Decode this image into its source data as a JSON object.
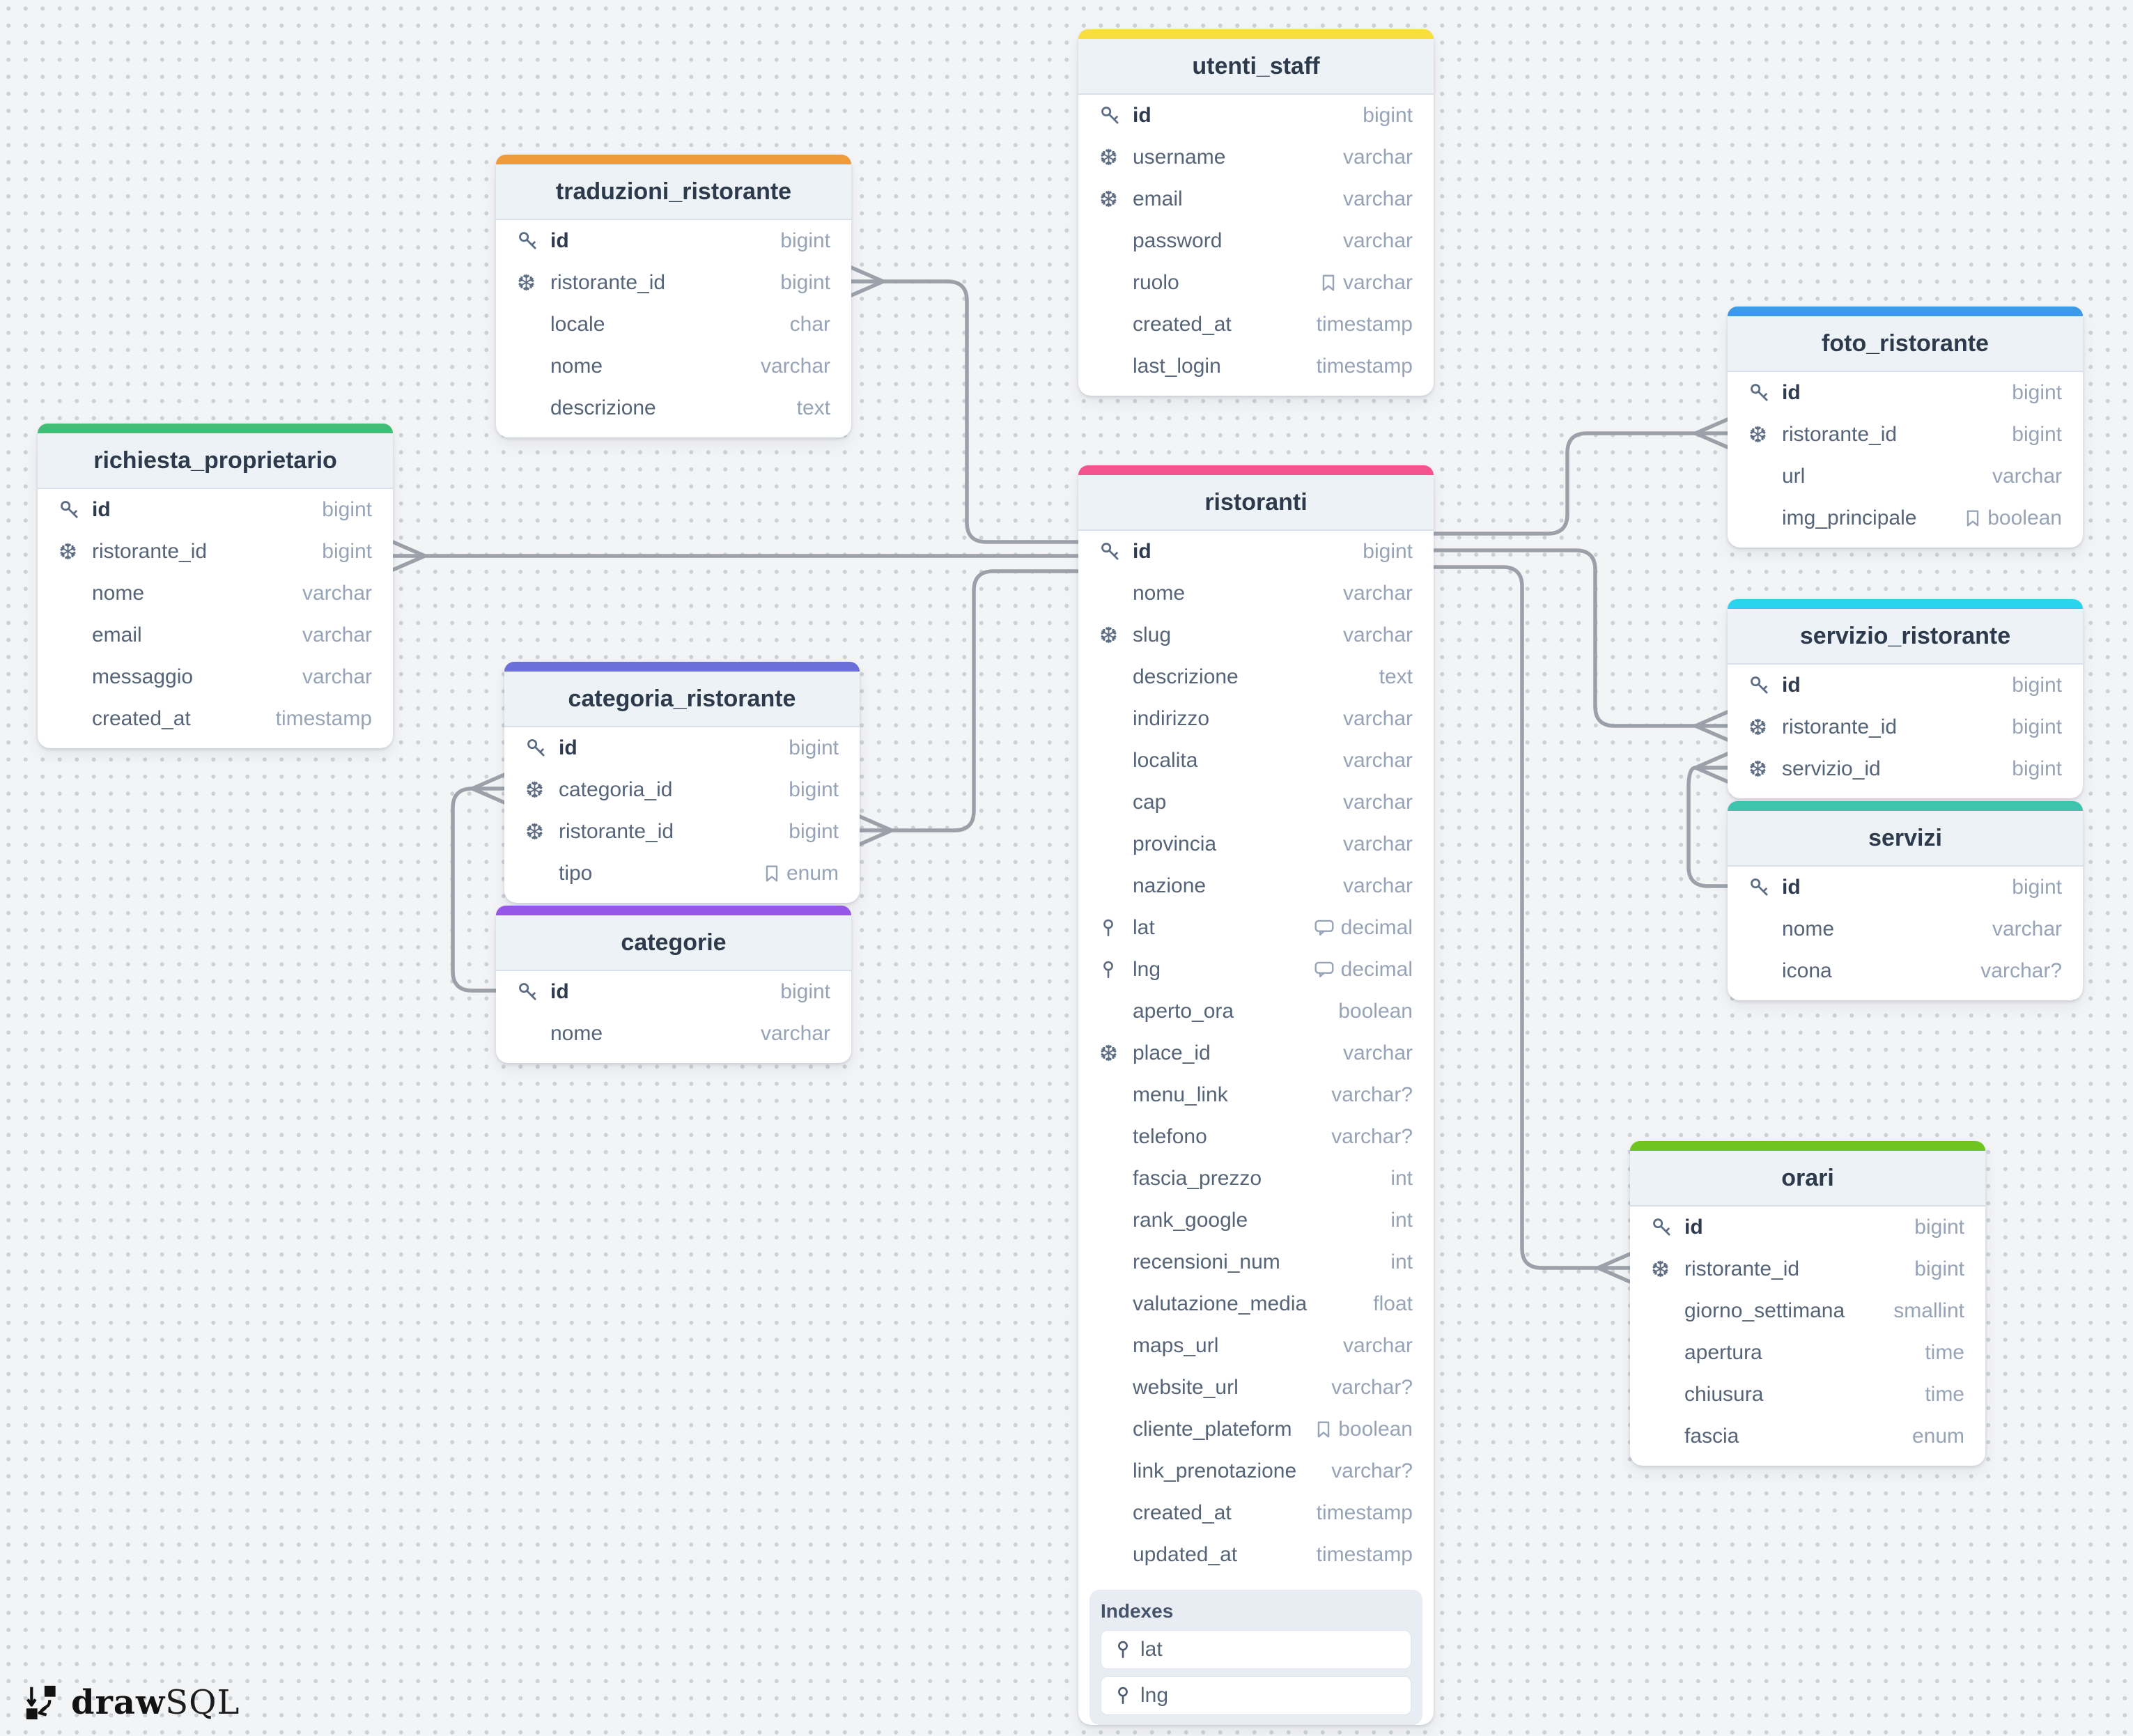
{
  "app": {
    "brand_bold": "draw",
    "brand_light": "SQL"
  },
  "colors": {
    "canvas_background": "#F3F4F6",
    "relationship_line": "#9CA1A9",
    "card_header_background": "#EDF2F7"
  },
  "tables": [
    {
      "id": "utenti_staff",
      "title": "utenti_staff",
      "accent_color": "#F8DF3E",
      "fields": [
        {
          "name": "id",
          "type": "bigint",
          "icon": "key",
          "pk": true
        },
        {
          "name": "username",
          "type": "varchar",
          "icon": "fk"
        },
        {
          "name": "email",
          "type": "varchar",
          "icon": "fk"
        },
        {
          "name": "password",
          "type": "varchar"
        },
        {
          "name": "ruolo",
          "type": "varchar",
          "type_icon": "bookmark"
        },
        {
          "name": "created_at",
          "type": "timestamp"
        },
        {
          "name": "last_login",
          "type": "timestamp"
        }
      ]
    },
    {
      "id": "traduzioni_ristorante",
      "title": "traduzioni_ristorante",
      "accent_color": "#F09A3C",
      "fields": [
        {
          "name": "id",
          "type": "bigint",
          "icon": "key",
          "pk": true
        },
        {
          "name": "ristorante_id",
          "type": "bigint",
          "icon": "fk"
        },
        {
          "name": "locale",
          "type": "char"
        },
        {
          "name": "nome",
          "type": "varchar"
        },
        {
          "name": "descrizione",
          "type": "text"
        }
      ]
    },
    {
      "id": "richiesta_proprietario",
      "title": "richiesta_proprietario",
      "accent_color": "#41BD78",
      "fields": [
        {
          "name": "id",
          "type": "bigint",
          "icon": "key",
          "pk": true
        },
        {
          "name": "ristorante_id",
          "type": "bigint",
          "icon": "fk"
        },
        {
          "name": "nome",
          "type": "varchar"
        },
        {
          "name": "email",
          "type": "varchar"
        },
        {
          "name": "messaggio",
          "type": "varchar"
        },
        {
          "name": "created_at",
          "type": "timestamp"
        }
      ]
    },
    {
      "id": "ristoranti",
      "title": "ristoranti",
      "accent_color": "#F3548C",
      "fields": [
        {
          "name": "id",
          "type": "bigint",
          "icon": "key",
          "pk": true
        },
        {
          "name": "nome",
          "type": "varchar"
        },
        {
          "name": "slug",
          "type": "varchar",
          "icon": "fk"
        },
        {
          "name": "descrizione",
          "type": "text"
        },
        {
          "name": "indirizzo",
          "type": "varchar"
        },
        {
          "name": "localita",
          "type": "varchar"
        },
        {
          "name": "cap",
          "type": "varchar"
        },
        {
          "name": "provincia",
          "type": "varchar"
        },
        {
          "name": "nazione",
          "type": "varchar"
        },
        {
          "name": "lat",
          "type": "decimal",
          "icon": "pin",
          "type_icon": "comment"
        },
        {
          "name": "lng",
          "type": "decimal",
          "icon": "pin",
          "type_icon": "comment"
        },
        {
          "name": "aperto_ora",
          "type": "boolean"
        },
        {
          "name": "place_id",
          "type": "varchar",
          "icon": "fk"
        },
        {
          "name": "menu_link",
          "type": "varchar?"
        },
        {
          "name": "telefono",
          "type": "varchar?"
        },
        {
          "name": "fascia_prezzo",
          "type": "int"
        },
        {
          "name": "rank_google",
          "type": "int"
        },
        {
          "name": "recensioni_num",
          "type": "int"
        },
        {
          "name": "valutazione_media",
          "type": "float"
        },
        {
          "name": "maps_url",
          "type": "varchar"
        },
        {
          "name": "website_url",
          "type": "varchar?"
        },
        {
          "name": "cliente_plateform",
          "type": "boolean",
          "type_icon": "bookmark"
        },
        {
          "name": "link_prenotazione",
          "type": "varchar?"
        },
        {
          "name": "created_at",
          "type": "timestamp"
        },
        {
          "name": "updated_at",
          "type": "timestamp"
        }
      ],
      "indexes_label": "Indexes",
      "indexes": [
        {
          "name": "lat"
        },
        {
          "name": "lng"
        }
      ]
    },
    {
      "id": "foto_ristorante",
      "title": "foto_ristorante",
      "accent_color": "#3D9AE8",
      "fields": [
        {
          "name": "id",
          "type": "bigint",
          "icon": "key",
          "pk": true
        },
        {
          "name": "ristorante_id",
          "type": "bigint",
          "icon": "fk"
        },
        {
          "name": "url",
          "type": "varchar"
        },
        {
          "name": "img_principale",
          "type": "boolean",
          "type_icon": "bookmark"
        }
      ]
    },
    {
      "id": "servizio_ristorante",
      "title": "servizio_ristorante",
      "accent_color": "#2BD4ED",
      "fields": [
        {
          "name": "id",
          "type": "bigint",
          "icon": "key",
          "pk": true
        },
        {
          "name": "ristorante_id",
          "type": "bigint",
          "icon": "fk"
        },
        {
          "name": "servizio_id",
          "type": "bigint",
          "icon": "fk"
        }
      ]
    },
    {
      "id": "servizi",
      "title": "servizi",
      "accent_color": "#3EC4AD",
      "fields": [
        {
          "name": "id",
          "type": "bigint",
          "icon": "key",
          "pk": true
        },
        {
          "name": "nome",
          "type": "varchar"
        },
        {
          "name": "icona",
          "type": "varchar?"
        }
      ]
    },
    {
      "id": "orari",
      "title": "orari",
      "accent_color": "#70C41F",
      "fields": [
        {
          "name": "id",
          "type": "bigint",
          "icon": "key",
          "pk": true
        },
        {
          "name": "ristorante_id",
          "type": "bigint",
          "icon": "fk"
        },
        {
          "name": "giorno_settimana",
          "type": "smallint"
        },
        {
          "name": "apertura",
          "type": "time"
        },
        {
          "name": "chiusura",
          "type": "time"
        },
        {
          "name": "fascia",
          "type": "enum"
        }
      ]
    },
    {
      "id": "categoria_ristorante",
      "title": "categoria_ristorante",
      "accent_color": "#6B70D8",
      "fields": [
        {
          "name": "id",
          "type": "bigint",
          "icon": "key",
          "pk": true
        },
        {
          "name": "categoria_id",
          "type": "bigint",
          "icon": "fk"
        },
        {
          "name": "ristorante_id",
          "type": "bigint",
          "icon": "fk"
        },
        {
          "name": "tipo",
          "type": "enum",
          "type_icon": "bookmark"
        }
      ]
    },
    {
      "id": "categorie",
      "title": "categorie",
      "accent_color": "#9557E8",
      "fields": [
        {
          "name": "id",
          "type": "bigint",
          "icon": "key",
          "pk": true
        },
        {
          "name": "nome",
          "type": "varchar"
        }
      ]
    }
  ],
  "relationships": [
    {
      "from": "ristoranti.id",
      "to": "traduzioni_ristorante.ristorante_id"
    },
    {
      "from": "ristoranti.id",
      "to": "richiesta_proprietario.ristorante_id"
    },
    {
      "from": "ristoranti.id",
      "to": "categoria_ristorante.ristorante_id"
    },
    {
      "from": "categorie.id",
      "to": "categoria_ristorante.categoria_id"
    },
    {
      "from": "ristoranti.id",
      "to": "foto_ristorante.ristorante_id"
    },
    {
      "from": "ristoranti.id",
      "to": "servizio_ristorante.ristorante_id"
    },
    {
      "from": "servizi.id",
      "to": "servizio_ristorante.servizio_id"
    },
    {
      "from": "ristoranti.id",
      "to": "orari.ristorante_id"
    }
  ]
}
